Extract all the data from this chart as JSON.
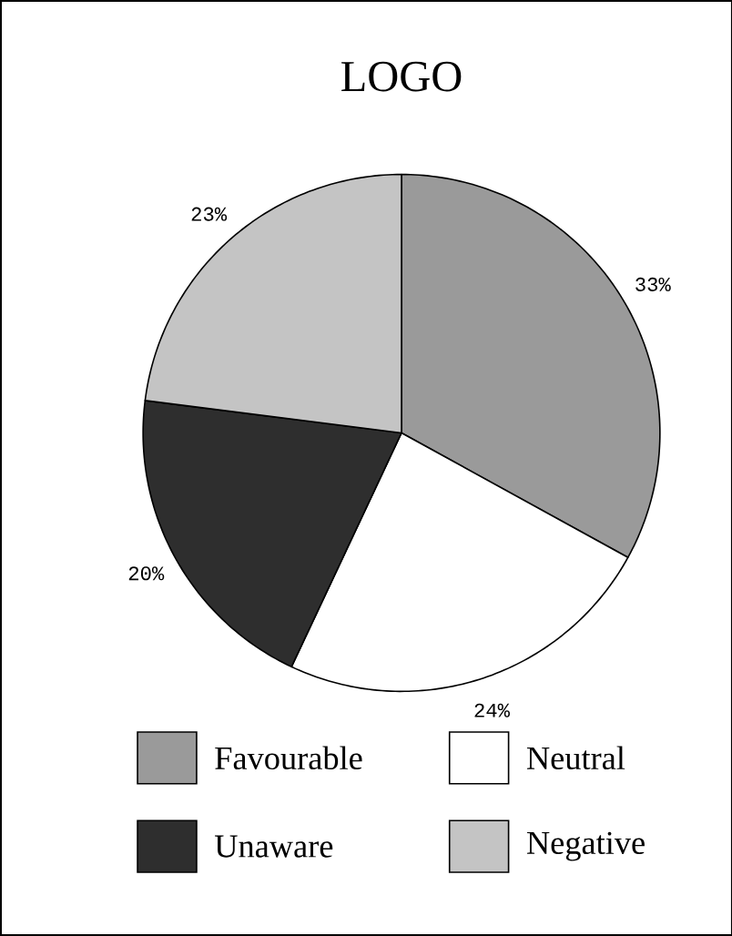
{
  "chart_data": {
    "type": "pie",
    "title": "LOGO",
    "categories": [
      "Favourable",
      "Neutral",
      "Unaware",
      "Negative"
    ],
    "values": [
      33,
      24,
      20,
      23
    ],
    "colors": [
      "#9a9a9a",
      "#ffffff",
      "#2e2e2e",
      "#c4c4c4"
    ],
    "value_labels": [
      "33%",
      "24%",
      "20%",
      "23%"
    ],
    "legend": "bottom"
  }
}
